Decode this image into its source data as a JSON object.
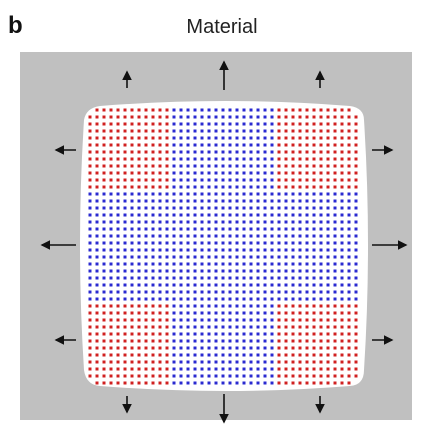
{
  "panel_label": "b",
  "title": "Material"
}
